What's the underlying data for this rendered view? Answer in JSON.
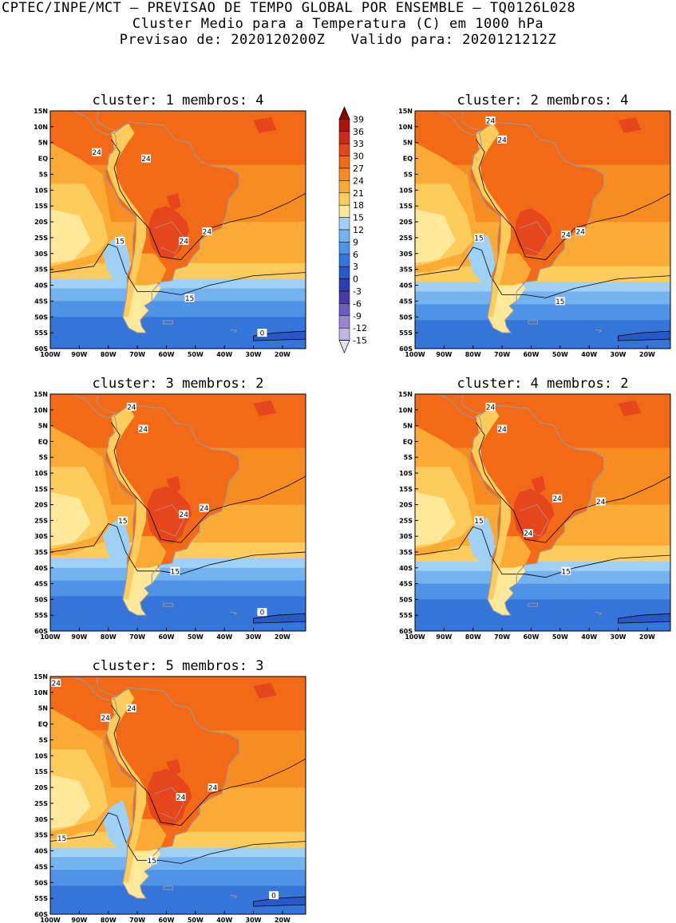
{
  "header": {
    "line1": "CPTEC/INPE/MCT — PREVISAO DE TEMPO GLOBAL POR ENSEMBLE — TQ0126L028",
    "line2": "Cluster Medio para a Temperatura (C) em 1000 hPa",
    "line3": "Previsao de: 2020120200Z   Valido para: 2020121212Z"
  },
  "axes": {
    "lat_labels": [
      "15N",
      "10N",
      "5N",
      "EQ",
      "5S",
      "10S",
      "15S",
      "20S",
      "25S",
      "30S",
      "35S",
      "40S",
      "45S",
      "50S",
      "55S",
      "60S"
    ],
    "lon_labels": [
      "100W",
      "90W",
      "80W",
      "70W",
      "60W",
      "50W",
      "40W",
      "30W",
      "20W"
    ]
  },
  "panels": [
    {
      "title": "cluster: 1   membros: 4",
      "labels": [
        {
          "t": "24",
          "lat": 2,
          "lon": -84
        },
        {
          "t": "24",
          "lat": 0,
          "lon": -67
        },
        {
          "t": "24",
          "lat": -26,
          "lon": -54
        },
        {
          "t": "24",
          "lat": -23,
          "lon": -46
        },
        {
          "t": "15",
          "lat": -26,
          "lon": -76
        },
        {
          "t": "15",
          "lat": -44,
          "lon": -52
        },
        {
          "t": "0",
          "lat": -55,
          "lon": -27
        }
      ]
    },
    {
      "title": "cluster: 2   membros: 4",
      "labels": [
        {
          "t": "24",
          "lat": 12,
          "lon": -74
        },
        {
          "t": "24",
          "lat": 6,
          "lon": -70
        },
        {
          "t": "24",
          "lat": -24,
          "lon": -48
        },
        {
          "t": "24",
          "lat": -23,
          "lon": -43
        },
        {
          "t": "15",
          "lat": -25,
          "lon": -78
        },
        {
          "t": "15",
          "lat": -45,
          "lon": -50
        }
      ]
    },
    {
      "title": "cluster: 3   membros: 2",
      "labels": [
        {
          "t": "24",
          "lat": 11,
          "lon": -72
        },
        {
          "t": "24",
          "lat": 4,
          "lon": -68
        },
        {
          "t": "24",
          "lat": -23,
          "lon": -54
        },
        {
          "t": "24",
          "lat": -21,
          "lon": -47
        },
        {
          "t": "15",
          "lat": -25,
          "lon": -75
        },
        {
          "t": "15",
          "lat": -41,
          "lon": -57
        },
        {
          "t": "0",
          "lat": -54,
          "lon": -27
        }
      ]
    },
    {
      "title": "cluster: 4   membros: 2",
      "labels": [
        {
          "t": "24",
          "lat": 11,
          "lon": -74
        },
        {
          "t": "24",
          "lat": 4,
          "lon": -70
        },
        {
          "t": "24",
          "lat": -18,
          "lon": -51
        },
        {
          "t": "24",
          "lat": -19,
          "lon": -36
        },
        {
          "t": "24",
          "lat": -29,
          "lon": -61
        },
        {
          "t": "15",
          "lat": -25,
          "lon": -78
        },
        {
          "t": "15",
          "lat": -41,
          "lon": -48
        }
      ]
    },
    {
      "title": "cluster: 5   membros: 3",
      "labels": [
        {
          "t": "24",
          "lat": 13,
          "lon": -98
        },
        {
          "t": "24",
          "lat": 5,
          "lon": -72
        },
        {
          "t": "24",
          "lat": 2,
          "lon": -81
        },
        {
          "t": "24",
          "lat": -23,
          "lon": -55
        },
        {
          "t": "24",
          "lat": -20,
          "lon": -44
        },
        {
          "t": "15",
          "lat": -36,
          "lon": -96
        },
        {
          "t": "15",
          "lat": -43,
          "lon": -65
        },
        {
          "t": "0",
          "lat": -54,
          "lon": -23
        }
      ]
    }
  ],
  "colorbar": {
    "values": [
      "39",
      "36",
      "33",
      "30",
      "27",
      "24",
      "21",
      "18",
      "15",
      "12",
      "9",
      "6",
      "3",
      "0",
      "-3",
      "-6",
      "-9",
      "-12",
      "-15"
    ],
    "colors": [
      "#8b0000",
      "#b01010",
      "#cc2a1a",
      "#e5461c",
      "#f26a18",
      "#f78c22",
      "#fbaa36",
      "#fdcc5c",
      "#fee89a",
      "#9fd0f5",
      "#74b2f0",
      "#4f93e6",
      "#3574d8",
      "#2958c7",
      "#2e3db0",
      "#4a3aa8",
      "#6e5cbd",
      "#9987d2",
      "#c2b6e4",
      "#e6e0f3"
    ]
  }
}
